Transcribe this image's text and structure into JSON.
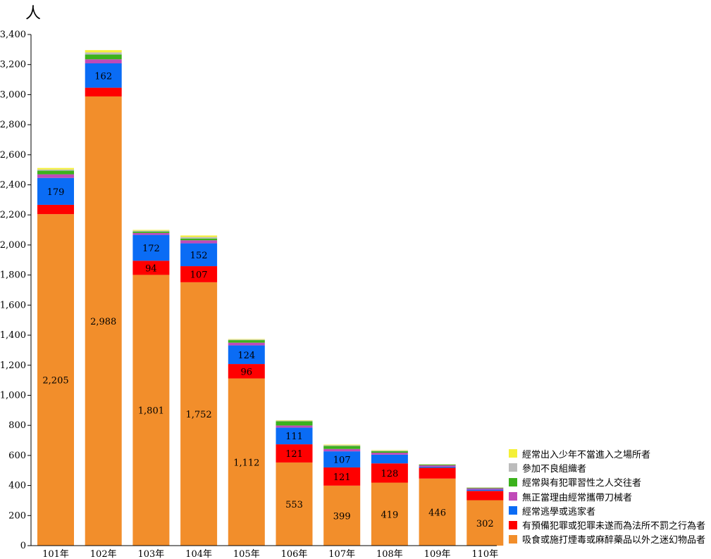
{
  "chart_data": {
    "type": "bar",
    "stacked": true,
    "ylabel": "人",
    "ylim": [
      0,
      3400
    ],
    "yticks": [
      0,
      200,
      400,
      600,
      800,
      1000,
      1200,
      1400,
      1600,
      1800,
      2000,
      2200,
      2400,
      2600,
      2800,
      3000,
      3200,
      3400
    ],
    "ytick_labels": [
      "0",
      "200",
      "400",
      "600",
      "800",
      "1,000",
      "1,200",
      "1,400",
      "1,600",
      "1,800",
      "2,000",
      "2,200",
      "2,400",
      "2,600",
      "2,800",
      "3,000",
      "3,200",
      "3,400"
    ],
    "categories": [
      "101年",
      "102年",
      "103年",
      "104年",
      "105年",
      "106年",
      "107年",
      "108年",
      "109年",
      "110年"
    ],
    "legend_position": "bottom-right",
    "grid": false,
    "series": [
      {
        "name": "吸食或施打煙毒或麻醉藥品以外之迷幻物品者",
        "color": "#f28e2b",
        "values": [
          2205,
          2988,
          1801,
          1752,
          1112,
          553,
          399,
          419,
          446,
          302
        ],
        "labels": [
          "2,205",
          "2,988",
          "1,801",
          "1,752",
          "1,112",
          "553",
          "399",
          "419",
          "446",
          "302"
        ]
      },
      {
        "name": "有預備犯罪或犯罪未遂而為法所不罰之行為者",
        "color": "#ff0000",
        "values": [
          62,
          58,
          94,
          107,
          96,
          121,
          121,
          128,
          72,
          62
        ],
        "labels": [
          "",
          "",
          "94",
          "107",
          "96",
          "121",
          "121",
          "128",
          "",
          ""
        ]
      },
      {
        "name": "經常逃學或逃家者",
        "color": "#0a6cf5",
        "values": [
          179,
          162,
          172,
          152,
          124,
          111,
          107,
          58,
          7,
          8
        ],
        "labels": [
          "179",
          "162",
          "172",
          "152",
          "124",
          "111",
          "107",
          "",
          "",
          ""
        ]
      },
      {
        "name": "無正當理由經常攜帶刀械者",
        "color": "#c04ab8",
        "values": [
          24,
          27,
          13,
          20,
          18,
          14,
          16,
          13,
          9,
          9
        ],
        "labels": [
          "",
          "",
          "",
          "",
          "",
          "",
          "",
          "",
          "",
          ""
        ]
      },
      {
        "name": "經常與有犯罪習性之人交往者",
        "color": "#3bb21c",
        "values": [
          24,
          32,
          9,
          12,
          17,
          28,
          20,
          10,
          5,
          4
        ],
        "labels": [
          "",
          "",
          "",
          "",
          "",
          "",
          "",
          "",
          "",
          ""
        ]
      },
      {
        "name": "參加不良組織者",
        "color": "#bcbcbc",
        "values": [
          8,
          14,
          6,
          10,
          4,
          4,
          5,
          4,
          2,
          2
        ],
        "labels": [
          "",
          "",
          "",
          "",
          "",
          "",
          "",
          "",
          "",
          ""
        ]
      },
      {
        "name": "經常出入少年不當進入之場所者",
        "color": "#f4f037",
        "values": [
          10,
          15,
          5,
          10,
          3,
          3,
          4,
          3,
          1,
          1
        ],
        "labels": [
          "",
          "",
          "",
          "",
          "",
          "",
          "",
          "",
          "",
          ""
        ]
      }
    ]
  }
}
